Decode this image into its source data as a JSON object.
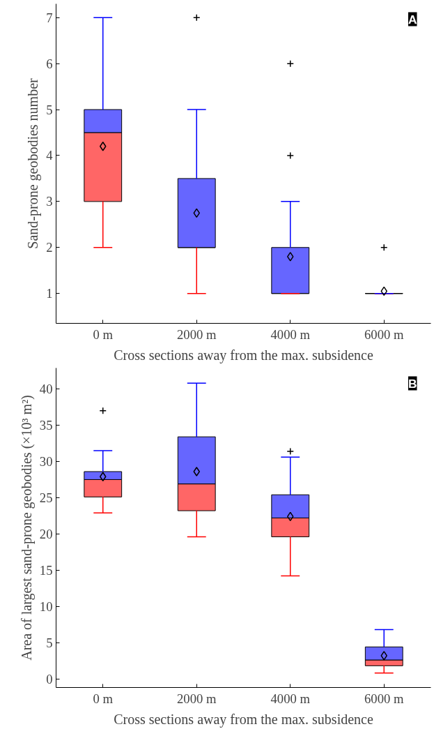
{
  "chart_data": [
    {
      "type": "box",
      "categories": [
        "0 m",
        "2000 m",
        "4000 m",
        "6000 m"
      ],
      "xlabel": "Cross sections away from the max. subsidence",
      "ylabel": "Sand-prone geobodies number",
      "annotations": [
        "A"
      ],
      "ylim": [
        0.35,
        7.3
      ],
      "yticks": [
        1,
        2,
        3,
        4,
        5,
        6,
        7
      ],
      "grid": false,
      "colors": [
        [
          "#ff6666",
          "#6666ff"
        ],
        [
          "#ff6666",
          "#6666ff"
        ],
        [
          "#ff6666",
          "#6666ff"
        ],
        [
          "#ff6666",
          "#6666ff"
        ]
      ],
      "boxes": [
        {
          "low": 2,
          "q1": 3,
          "median": 4.5,
          "q3": 5,
          "high": 7,
          "mean": 4.2
        },
        {
          "low": 1,
          "q1": 2,
          "median": 2,
          "q3": 3.5,
          "high": 5,
          "mean": 2.75,
          "outliers": [
            7
          ]
        },
        {
          "low": 1,
          "q1": 1,
          "median": 1,
          "q3": 2,
          "high": 3,
          "mean": 1.8,
          "outliers": [
            4,
            6
          ]
        },
        {
          "low": 1,
          "q1": 1,
          "median": 1,
          "q3": 1,
          "high": 1,
          "mean": 1.05,
          "outliers": [
            2
          ]
        }
      ]
    },
    {
      "type": "box",
      "categories": [
        "0 m",
        "2000 m",
        "4000 m",
        "6000 m"
      ],
      "xlabel": "Cross sections away from the max. subsidence",
      "ylabel": "Area of largest sand-prone geobodies (×10³ m²)",
      "annotations": [
        "B"
      ],
      "ylim": [
        -1.2,
        42.9
      ],
      "yticks": [
        0,
        5,
        10,
        15,
        20,
        25,
        30,
        35,
        40
      ],
      "grid": false,
      "colors": [
        [
          "#ff6666",
          "#6666ff"
        ],
        [
          "#ff6666",
          "#6666ff"
        ],
        [
          "#ff6666",
          "#6666ff"
        ],
        [
          "#ff6666",
          "#6666ff"
        ]
      ],
      "boxes": [
        {
          "low": 22.9,
          "q1": 25.1,
          "median": 27.5,
          "q3": 28.6,
          "high": 31.5,
          "mean": 27.9,
          "outliers": [
            37
          ]
        },
        {
          "low": 19.6,
          "q1": 23.2,
          "median": 26.9,
          "q3": 33.4,
          "high": 40.8,
          "mean": 28.6
        },
        {
          "low": 14.2,
          "q1": 19.6,
          "median": 22.2,
          "q3": 25.4,
          "high": 30.6,
          "mean": 22.4,
          "outliers": [
            31.4
          ]
        },
        {
          "low": 0.8,
          "q1": 1.8,
          "median": 2.6,
          "q3": 4.4,
          "high": 6.8,
          "mean": 3.2
        }
      ]
    }
  ]
}
